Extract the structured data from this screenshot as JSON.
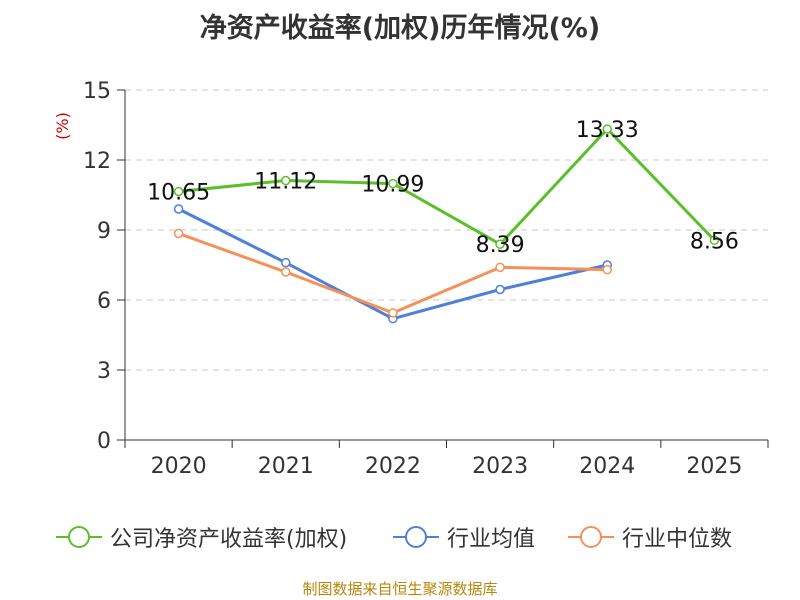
{
  "chart_data": {
    "type": "line",
    "title": "净资产收益率(加权)历年情况(%)",
    "ylabel": "(%)",
    "xlabel": "",
    "categories": [
      "2020",
      "2021",
      "2022",
      "2023",
      "2024",
      "2025"
    ],
    "ylim": [
      0,
      15
    ],
    "yticks": [
      0,
      3,
      6,
      9,
      12,
      15
    ],
    "grid": true,
    "legend_position": "bottom",
    "series": [
      {
        "name": "公司净资产收益率(加权)",
        "color": "#5cbf2a",
        "values": [
          10.65,
          11.12,
          10.99,
          8.39,
          13.33,
          8.56
        ],
        "data_labels": [
          "10.65",
          "11.12",
          "10.99",
          "8.39",
          "13.33",
          "8.56"
        ]
      },
      {
        "name": "行业均值",
        "color": "#4f7fd6",
        "values": [
          9.9,
          7.6,
          5.2,
          6.45,
          7.5,
          null
        ]
      },
      {
        "name": "行业中位数",
        "color": "#f5905a",
        "values": [
          8.85,
          7.2,
          5.45,
          7.4,
          7.3,
          null
        ]
      }
    ]
  },
  "footer": {
    "source": "制图数据来自恒生聚源数据库"
  }
}
